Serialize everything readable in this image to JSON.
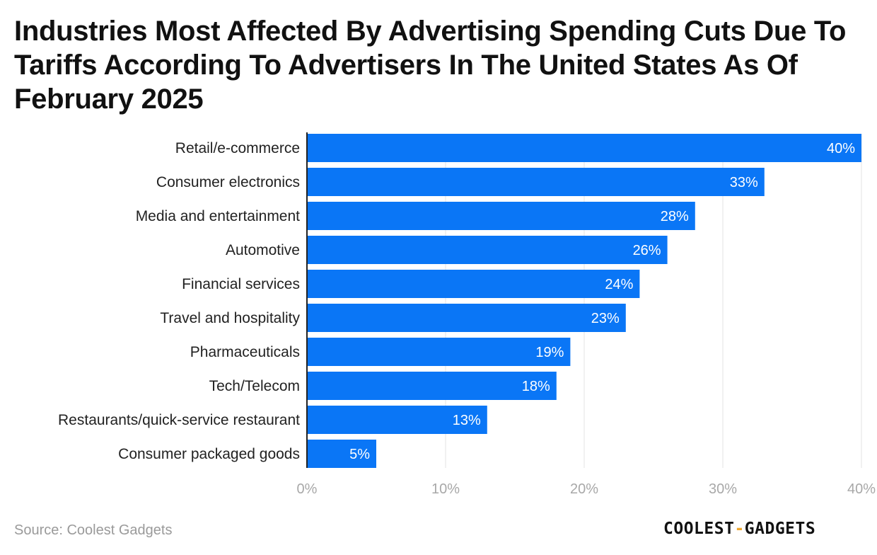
{
  "title": "Industries Most Affected By Advertising Spending Cuts Due To Tariffs According To Advertisers In The United States As Of February 2025",
  "source": "Source: Coolest Gadgets",
  "logo": {
    "part1": "COOLEST",
    "separator": "-",
    "part2": "GADGETS"
  },
  "colors": {
    "bar": "#0a76f6",
    "grid": "#e3e3e3",
    "axis": "#222222",
    "tick_label": "#a8a8a8",
    "category_label": "#222222",
    "value_label": "#ffffff"
  },
  "chart_data": {
    "type": "bar",
    "orientation": "horizontal",
    "title": "Industries Most Affected By Advertising Spending Cuts Due To Tariffs According To Advertisers In The United States As Of February 2025",
    "categories": [
      "Retail/e-commerce",
      "Consumer electronics",
      "Media and entertainment",
      "Automotive",
      "Financial services",
      "Travel and hospitality",
      "Pharmaceuticals",
      "Tech/Telecom",
      "Restaurants/quick-service restaurant",
      "Consumer packaged goods"
    ],
    "values": [
      40,
      33,
      28,
      26,
      24,
      23,
      19,
      18,
      13,
      5
    ],
    "value_labels": [
      "40%",
      "33%",
      "28%",
      "26%",
      "24%",
      "23%",
      "19%",
      "18%",
      "13%",
      "5%"
    ],
    "xlim": [
      0,
      40
    ],
    "xticks": [
      0,
      10,
      20,
      30,
      40
    ],
    "xtick_labels": [
      "0%",
      "10%",
      "20%",
      "30%",
      "40%"
    ],
    "xlabel": "",
    "ylabel": "",
    "grid": true
  }
}
